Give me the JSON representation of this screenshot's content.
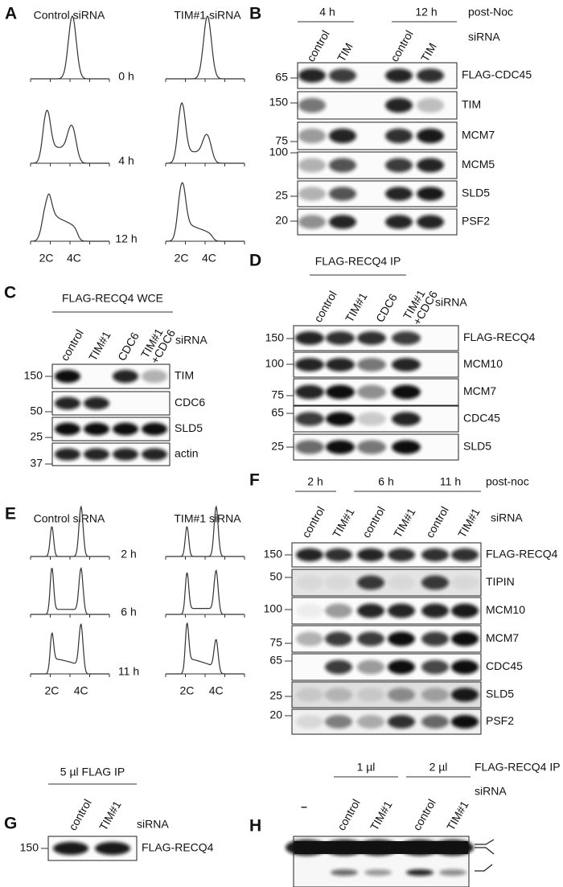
{
  "A": {
    "letter": "A",
    "columns": [
      "Control siRNA",
      "TIM#1 siRNA"
    ],
    "times": [
      "0 h",
      "4 h",
      "12 h"
    ],
    "dna": [
      "2C",
      "4C"
    ]
  },
  "B": {
    "letter": "B",
    "groups": [
      "4 h",
      "12 h"
    ],
    "group_label": "post-Noc",
    "lanes": [
      "control",
      "TIM",
      "control",
      "TIM"
    ],
    "lane_label": "siRNA",
    "blots": [
      {
        "marker": 65,
        "label": "FLAG-CDC45"
      },
      {
        "marker": 150,
        "label": "TIM"
      },
      {
        "marker": 75,
        "label": "MCM7"
      },
      {
        "marker": 100,
        "label": "MCM5"
      },
      {
        "marker": 25,
        "label": "SLD5"
      },
      {
        "marker": 20,
        "label": "PSF2"
      }
    ]
  },
  "C": {
    "letter": "C",
    "header": "FLAG-RECQ4 WCE",
    "lanes": [
      "control",
      "TIM#1",
      "CDC6",
      [
        "TIM#1",
        "+CDC6"
      ]
    ],
    "lane_label": "siRNA",
    "blots": [
      {
        "marker": 150,
        "label": "TIM"
      },
      {
        "marker": 50,
        "label": "CDC6"
      },
      {
        "marker": 25,
        "label": "SLD5"
      },
      {
        "marker": 37,
        "label": "actin"
      }
    ]
  },
  "D": {
    "letter": "D",
    "header": "FLAG-RECQ4 IP",
    "lanes": [
      "control",
      "TIM#1",
      "CDC6",
      [
        "TIM#1",
        "+CDC6"
      ]
    ],
    "lane_label": "siRNA",
    "blots": [
      {
        "marker": 150,
        "label": "FLAG-RECQ4"
      },
      {
        "marker": 100,
        "label": "MCM10"
      },
      {
        "marker": 75,
        "label": "MCM7"
      },
      {
        "marker": 65,
        "label": "CDC45"
      },
      {
        "marker": 25,
        "label": "SLD5"
      }
    ]
  },
  "E": {
    "letter": "E",
    "columns": [
      "Control siRNA",
      "TIM#1 siRNA"
    ],
    "times": [
      "2 h",
      "6 h",
      "11 h"
    ],
    "dna": [
      "2C",
      "4C"
    ]
  },
  "F": {
    "letter": "F",
    "groups": [
      "2 h",
      "6 h",
      "11 h"
    ],
    "group_label": "post-noc",
    "lanes": [
      "control",
      "TIM#1",
      "control",
      "TIM#1",
      "control",
      "TIM#1"
    ],
    "lane_label": "siRNA",
    "blots": [
      {
        "marker": 150,
        "label": "FLAG-RECQ4"
      },
      {
        "marker": 50,
        "label": "TIPIN"
      },
      {
        "marker": 100,
        "label": "MCM10"
      },
      {
        "marker": 75,
        "label": "MCM7"
      },
      {
        "marker": 65,
        "label": "CDC45"
      },
      {
        "marker": 25,
        "label": "SLD5"
      },
      {
        "marker": 20,
        "label": "PSF2"
      }
    ]
  },
  "G": {
    "letter": "G",
    "header": "5 µl FLAG IP",
    "lanes": [
      "control",
      "TIM#1"
    ],
    "lane_label": "siRNA",
    "blots": [
      {
        "marker": 150,
        "label": "FLAG-RECQ4"
      }
    ]
  },
  "H": {
    "letter": "H",
    "groups": [
      "1 µl",
      "2 µl"
    ],
    "header": "FLAG-RECQ4 IP",
    "lanes": [
      "–",
      "control",
      "TIM#1",
      "control",
      "TIM#1"
    ],
    "lane_label": "siRNA"
  }
}
